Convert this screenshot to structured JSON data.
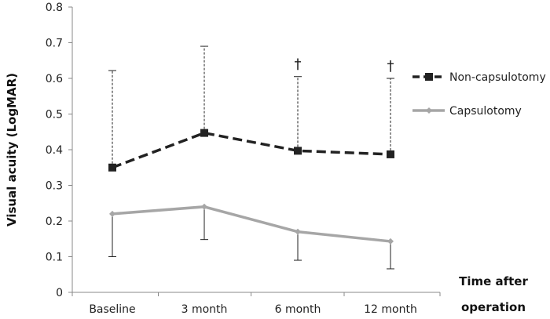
{
  "chart_data": {
    "type": "line",
    "xlabel": "Time after operation",
    "xlabel_lines": [
      "Time after",
      "operation"
    ],
    "ylabel": "Visual acuity (LogMAR)",
    "categories": [
      "Baseline",
      "3 month",
      "6 month",
      "12 month"
    ],
    "ylim": [
      0,
      0.8
    ],
    "yticks": [
      "0",
      "0.1",
      "0.2",
      "0.3",
      "0.4",
      "0.5",
      "0.6",
      "0.7",
      "0.8"
    ],
    "grid": false,
    "legend_position": "right",
    "series": [
      {
        "name": "Non-capsulotomy",
        "values": [
          0.35,
          0.447,
          0.397,
          0.387
        ],
        "error_upper": [
          0.622,
          0.69,
          0.605,
          0.6
        ],
        "error_style": "dashed",
        "line_style": "dashed",
        "marker": "square",
        "color": "#222222"
      },
      {
        "name": "Capsulotomy",
        "values": [
          0.22,
          0.24,
          0.17,
          0.143
        ],
        "error_lower": [
          0.1,
          0.148,
          0.09,
          0.066
        ],
        "error_style": "solid",
        "line_style": "solid",
        "marker": "diamond",
        "color": "#a6a6a6"
      }
    ],
    "annotations": [
      {
        "text": "†",
        "category": "6 month"
      },
      {
        "text": "†",
        "category": "12 month"
      }
    ]
  }
}
